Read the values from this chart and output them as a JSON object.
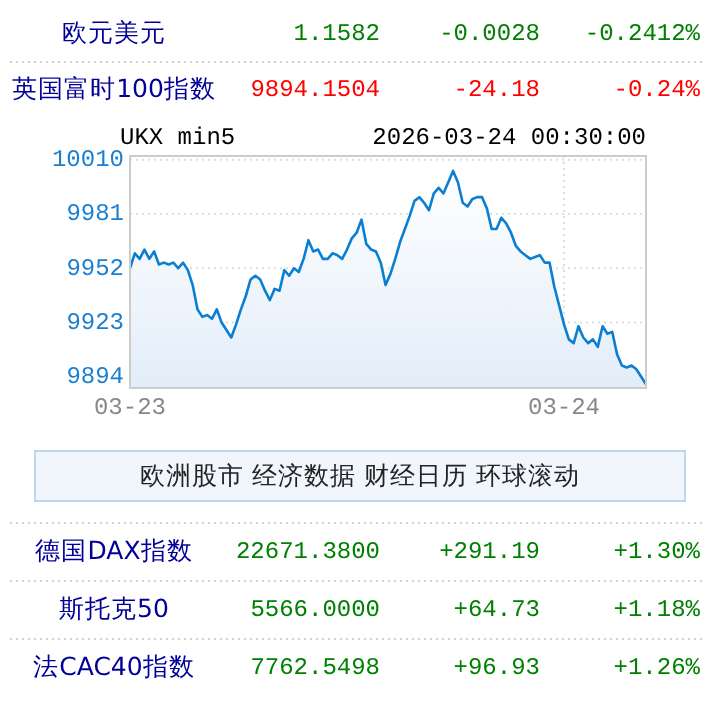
{
  "chart_data": [
    {
      "type": "other",
      "annotations": [
        "欧元美元",
        "1.1582",
        "-0.0028",
        "-0.2412%",
        "英国富时100指数",
        "9894.1504",
        "-24.18",
        "-0.24%"
      ],
      "colors": [
        "#008000",
        "#ff0000"
      ]
    },
    {
      "type": "area",
      "title": "UKX min5",
      "subtitle": "2026-03-24 00:30:00",
      "color": "#0a7fd2",
      "ylim": [
        9888,
        10012
      ],
      "yticks": [
        9894,
        9923,
        9952,
        9981,
        10010
      ],
      "grid": true,
      "categories": [
        "03-23",
        null,
        null,
        null,
        null,
        null,
        null,
        null,
        null,
        null,
        null,
        null,
        null,
        null,
        null,
        null,
        null,
        null,
        null,
        null,
        null,
        null,
        null,
        null,
        null,
        null,
        null,
        null,
        null,
        null,
        null,
        null,
        null,
        null,
        null,
        null,
        null,
        null,
        null,
        null,
        null,
        null,
        null,
        null,
        null,
        null,
        null,
        null,
        null,
        null,
        null,
        null,
        null,
        null,
        null,
        null,
        null,
        null,
        null,
        null,
        null,
        null,
        null,
        null,
        null,
        null,
        null,
        null,
        null,
        null,
        null,
        null,
        null,
        null,
        null,
        null,
        null,
        null,
        null,
        null,
        null,
        null,
        null,
        null,
        null,
        null,
        null,
        null,
        null,
        null,
        "03-24",
        null,
        null,
        null,
        null,
        null,
        null,
        null,
        null,
        null,
        null,
        null,
        null,
        null,
        null,
        null,
        null,
        null
      ],
      "values": [
        9952,
        9960,
        9957,
        9962,
        9957,
        9961,
        9954,
        9955,
        9954,
        9955,
        9952,
        9955,
        9951,
        9943,
        9930,
        9926,
        9927,
        9925,
        9930,
        9923,
        9919,
        9915,
        9922,
        9930,
        9937,
        9946,
        9948,
        9946,
        9940,
        9935,
        9941,
        9940,
        9951,
        9948,
        9952,
        9950,
        9957,
        9967,
        9961,
        9962,
        9957,
        9957,
        9960,
        9959,
        9957,
        9962,
        9968,
        9971,
        9978,
        9965,
        9962,
        9961,
        9955,
        9943,
        9949,
        9957,
        9966,
        9973,
        9980,
        9988,
        9990,
        9987,
        9983,
        9992,
        9995,
        9992,
        9998,
        10004,
        9998,
        9987,
        9985,
        9989,
        9990,
        9990,
        9984,
        9973,
        9973,
        9979,
        9976,
        9971,
        9964,
        9961,
        9959,
        9957,
        9958,
        9959,
        9955,
        9955,
        9942,
        9932,
        9922,
        9914,
        9912,
        9921,
        9915,
        9912,
        9914,
        9910,
        9921,
        9917,
        9918,
        9906,
        9900,
        9899,
        9900,
        9898,
        9894,
        9890
      ]
    },
    {
      "type": "other",
      "annotations": [
        "欧洲股市",
        "经济数据",
        "财经日历",
        "环球滚动"
      ]
    },
    {
      "type": "other",
      "annotations": [
        "德国DAX指数",
        "22671.3800",
        "+291.19",
        "+1.30%",
        "斯托克50",
        "5566.0000",
        "+64.73",
        "+1.18%",
        "法CAC40指数",
        "7762.5498",
        "+96.93",
        "+1.26%"
      ],
      "colors": [
        "#008000",
        "#008000",
        "#008000"
      ]
    }
  ]
}
